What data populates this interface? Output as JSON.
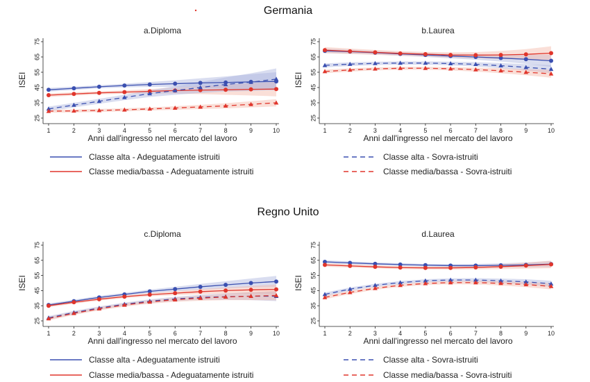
{
  "sections": [
    {
      "title": "Germania",
      "panels": [
        "a",
        "b"
      ]
    },
    {
      "title": "Regno Unito",
      "panels": [
        "c",
        "d"
      ]
    }
  ],
  "colors": {
    "blue": "#3a4fb0",
    "red": "#e0352b",
    "blue_band": "#aab3de",
    "red_band": "#f4b9a8"
  },
  "legend": [
    {
      "label": "Classe alta - Adeguatamente istruiti",
      "color": "#3a4fb0",
      "dash": false
    },
    {
      "label": "Classe media/bassa - Adeguatamente istruiti",
      "color": "#e0352b",
      "dash": false
    },
    {
      "label": "Classe alta - Sovra-istruiti",
      "color": "#3a4fb0",
      "dash": true
    },
    {
      "label": "Classe media/bassa - Sovra-istruiti",
      "color": "#e0352b",
      "dash": true
    }
  ],
  "chart_data": [
    {
      "id": "a",
      "type": "line",
      "title": "a.Diploma",
      "xlabel": "Anni dall'ingresso nel mercato del lavoro",
      "ylabel": "ISEI",
      "x": [
        1,
        2,
        3,
        4,
        5,
        6,
        7,
        8,
        9,
        10
      ],
      "ylim": [
        25,
        75
      ],
      "yticks": [
        25,
        35,
        45,
        55,
        65,
        75
      ],
      "series": [
        {
          "name": "Classe alta - Adeguatamente istruiti",
          "color": "blue",
          "dash": false,
          "marker": "circle",
          "values": [
            43.5,
            44.5,
            45.5,
            46.3,
            47,
            47.5,
            48,
            48.3,
            48.7,
            49
          ],
          "ci": [
            1.2,
            1.1,
            1,
            1.2,
            1.6,
            2.2,
            3,
            4,
            5,
            6
          ]
        },
        {
          "name": "Classe media/bassa - Adeguatamente istruiti",
          "color": "red",
          "dash": false,
          "marker": "circle",
          "values": [
            40,
            40.8,
            41.5,
            42,
            42.5,
            43,
            43.3,
            43.5,
            43.8,
            44
          ],
          "ci": [
            1.2,
            1.1,
            1,
            1.1,
            1.5,
            2,
            2.6,
            3.3,
            4,
            4.8
          ]
        },
        {
          "name": "Classe alta - Sovra-istruiti",
          "color": "blue",
          "dash": true,
          "marker": "triangle",
          "values": [
            31,
            33.5,
            36,
            38.5,
            41,
            43,
            45,
            47,
            48.5,
            50.5
          ],
          "ci": [
            1.5,
            1.5,
            1.6,
            1.8,
            2.2,
            2.8,
            3.6,
            4.6,
            5.8,
            7
          ]
        },
        {
          "name": "Classe media/bassa - Sovra-istruiti",
          "color": "red",
          "dash": true,
          "marker": "triangle",
          "values": [
            29.5,
            29.7,
            30,
            30.4,
            31,
            31.6,
            32.3,
            33,
            34,
            35
          ],
          "ci": [
            1,
            1,
            1,
            1,
            1,
            1.2,
            1.4,
            1.7,
            2,
            2.4
          ]
        }
      ]
    },
    {
      "id": "b",
      "type": "line",
      "title": "b.Laurea",
      "xlabel": "Anni dall'ingresso nel mercato del lavoro",
      "ylabel": "ISEI",
      "x": [
        1,
        2,
        3,
        4,
        5,
        6,
        7,
        8,
        9,
        10
      ],
      "ylim": [
        25,
        75
      ],
      "yticks": [
        25,
        35,
        45,
        55,
        65,
        75
      ],
      "series": [
        {
          "name": "Classe alta - Adeguatamente istruiti",
          "color": "blue",
          "dash": false,
          "marker": "circle",
          "values": [
            69,
            68.5,
            67.8,
            67,
            66.3,
            65.6,
            65,
            64.3,
            63.5,
            62.5
          ],
          "ci": [
            1.5,
            1.3,
            1.2,
            1.2,
            1.3,
            1.5,
            1.8,
            2.3,
            3,
            4
          ]
        },
        {
          "name": "Classe media/bassa - Adeguatamente istruiti",
          "color": "red",
          "dash": false,
          "marker": "circle",
          "values": [
            69.5,
            68.7,
            68,
            67.3,
            66.8,
            66.3,
            66.2,
            66.3,
            66.7,
            67.5
          ],
          "ci": [
            2,
            1.8,
            1.6,
            1.5,
            1.5,
            1.7,
            2,
            2.6,
            3.4,
            4.5
          ]
        },
        {
          "name": "Classe alta - Sovra-istruiti",
          "color": "blue",
          "dash": true,
          "marker": "triangle",
          "values": [
            59.5,
            60.3,
            60.8,
            61,
            61,
            60.7,
            60.2,
            59.3,
            58.2,
            57
          ],
          "ci": [
            1.3,
            1.2,
            1.1,
            1.1,
            1.1,
            1.2,
            1.4,
            1.7,
            2.1,
            2.6
          ]
        },
        {
          "name": "Classe media/bassa - Sovra-istruiti",
          "color": "red",
          "dash": true,
          "marker": "triangle",
          "values": [
            55.5,
            56.5,
            57.2,
            57.6,
            57.6,
            57.3,
            56.7,
            56,
            55,
            54
          ],
          "ci": [
            1.2,
            1.1,
            1,
            1,
            1,
            1.1,
            1.3,
            1.6,
            2,
            2.6
          ]
        }
      ]
    },
    {
      "id": "c",
      "type": "line",
      "title": "c.Diploma",
      "xlabel": "Anni dall'ingresso nel mercato del lavoro",
      "ylabel": "ISEI",
      "x": [
        1,
        2,
        3,
        4,
        5,
        6,
        7,
        8,
        9,
        10
      ],
      "ylim": [
        25,
        75
      ],
      "yticks": [
        25,
        35,
        45,
        55,
        65,
        75
      ],
      "series": [
        {
          "name": "Classe alta - Adeguatamente istruiti",
          "color": "blue",
          "dash": false,
          "marker": "circle",
          "values": [
            35.5,
            38,
            40.5,
            42.5,
            44.5,
            46,
            47.5,
            48.8,
            50,
            51
          ],
          "ci": [
            1,
            1,
            1,
            1,
            1.2,
            1.5,
            1.9,
            2.4,
            3,
            3.7
          ]
        },
        {
          "name": "Classe media/bassa - Adeguatamente istruiti",
          "color": "red",
          "dash": false,
          "marker": "circle",
          "values": [
            35,
            37.3,
            39.3,
            41,
            42.3,
            43.3,
            44.3,
            45,
            45.5,
            45.8
          ],
          "ci": [
            1,
            1,
            1,
            1,
            1.1,
            1.3,
            1.7,
            2.1,
            2.6,
            3.2
          ]
        },
        {
          "name": "Classe alta - Sovra-istruiti",
          "color": "blue",
          "dash": true,
          "marker": "triangle",
          "values": [
            27,
            30.5,
            33.5,
            36,
            38,
            39.5,
            40.5,
            41,
            41.3,
            41.3
          ],
          "ci": [
            1.2,
            1.1,
            1.1,
            1.1,
            1.2,
            1.4,
            1.7,
            2.1,
            2.6,
            3.2
          ]
        },
        {
          "name": "Classe media/bassa - Sovra-istruiti",
          "color": "red",
          "dash": true,
          "marker": "triangle",
          "values": [
            26.5,
            30,
            33,
            35.5,
            37.5,
            39,
            40,
            40.8,
            41.3,
            41.8
          ],
          "ci": [
            1.2,
            1.1,
            1.1,
            1.1,
            1.2,
            1.4,
            1.7,
            2.1,
            2.6,
            3.2
          ]
        }
      ]
    },
    {
      "id": "d",
      "type": "line",
      "title": "d.Laurea",
      "xlabel": "Anni dall'ingresso nel mercato del lavoro",
      "ylabel": "ISEI",
      "x": [
        1,
        2,
        3,
        4,
        5,
        6,
        7,
        8,
        9,
        10
      ],
      "ylim": [
        25,
        75
      ],
      "yticks": [
        25,
        35,
        45,
        55,
        65,
        75
      ],
      "series": [
        {
          "name": "Classe alta - Adeguatamente istruiti",
          "color": "blue",
          "dash": false,
          "marker": "circle",
          "values": [
            64,
            63.3,
            62.7,
            62.2,
            61.8,
            61.5,
            61.5,
            61.7,
            62,
            62.5
          ],
          "ci": [
            1,
            1,
            0.9,
            0.9,
            0.9,
            1,
            1.1,
            1.3,
            1.6,
            2
          ]
        },
        {
          "name": "Classe media/bassa - Adeguatamente istruiti",
          "color": "red",
          "dash": false,
          "marker": "circle",
          "values": [
            62,
            61.3,
            60.7,
            60.2,
            60,
            60,
            60.3,
            60.8,
            61.5,
            62.3
          ],
          "ci": [
            1.2,
            1.1,
            1,
            1,
            1,
            1.1,
            1.3,
            1.6,
            2,
            2.5
          ]
        },
        {
          "name": "Classe alta - Sovra-istruiti",
          "color": "blue",
          "dash": true,
          "marker": "triangle",
          "values": [
            42.5,
            46,
            48.5,
            50.3,
            51.5,
            52,
            52,
            51.5,
            50.8,
            49.5
          ],
          "ci": [
            1.2,
            1.1,
            1,
            1,
            1,
            1.1,
            1.2,
            1.4,
            1.7,
            2
          ]
        },
        {
          "name": "Classe media/bassa - Sovra-istruiti",
          "color": "red",
          "dash": true,
          "marker": "triangle",
          "values": [
            40.5,
            43.8,
            46.5,
            48.5,
            49.7,
            50.3,
            50.3,
            49.8,
            49,
            47.8
          ],
          "ci": [
            1.2,
            1.1,
            1,
            1,
            1,
            1.1,
            1.2,
            1.4,
            1.7,
            2
          ]
        }
      ]
    }
  ]
}
